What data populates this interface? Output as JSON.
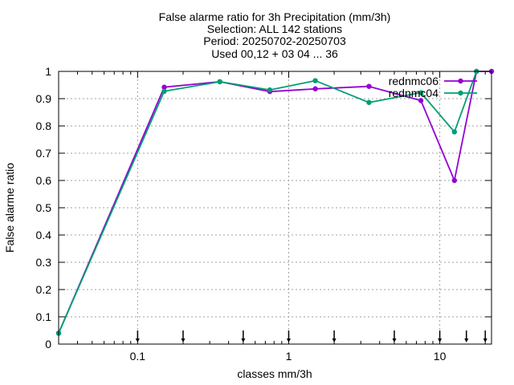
{
  "chart_data": {
    "type": "line",
    "title_lines": [
      "False alarme ratio  for 3h Precipitation (mm/3h)",
      "Selection: ALL    142 stations",
      "Period: 20250702-20250703",
      "Used 00,12 + 03 04 ... 36"
    ],
    "xlabel": "classes mm/3h",
    "ylabel": "False alarme ratio",
    "x_scale": "log",
    "xlim": [
      0.03,
      22
    ],
    "ylim": [
      0,
      1
    ],
    "x_ticks": [
      {
        "value": 0.1,
        "label": "0.1"
      },
      {
        "value": 1,
        "label": "1"
      },
      {
        "value": 10,
        "label": "10"
      }
    ],
    "y_ticks": [
      {
        "value": 0,
        "label": "0"
      },
      {
        "value": 0.1,
        "label": "0.1"
      },
      {
        "value": 0.2,
        "label": "0.2"
      },
      {
        "value": 0.3,
        "label": "0.3"
      },
      {
        "value": 0.4,
        "label": "0.4"
      },
      {
        "value": 0.5,
        "label": "0.5"
      },
      {
        "value": 0.6,
        "label": "0.6"
      },
      {
        "value": 0.7,
        "label": "0.7"
      },
      {
        "value": 0.8,
        "label": "0.8"
      },
      {
        "value": 0.9,
        "label": "0.9"
      },
      {
        "value": 1,
        "label": "1"
      }
    ],
    "class_markers": [
      0.1,
      0.2,
      0.5,
      1,
      2,
      5,
      10,
      15,
      20
    ],
    "grid": true,
    "legend_position": "top-right",
    "series": [
      {
        "name": "rednmc06",
        "color": "#9400d3",
        "x": [
          0.03,
          0.15,
          0.35,
          0.75,
          1.5,
          3.4,
          7.5,
          12.5,
          17.5,
          22
        ],
        "y": [
          0.04,
          0.942,
          0.962,
          0.926,
          0.936,
          0.945,
          0.893,
          0.6,
          1.0,
          1.0
        ]
      },
      {
        "name": "rednmc04",
        "color": "#009e73",
        "x": [
          0.03,
          0.15,
          0.35,
          0.75,
          1.5,
          3.4,
          7.5,
          12.5,
          17.5
        ],
        "y": [
          0.04,
          0.927,
          0.962,
          0.932,
          0.966,
          0.886,
          0.922,
          0.778,
          1.0
        ]
      }
    ]
  }
}
